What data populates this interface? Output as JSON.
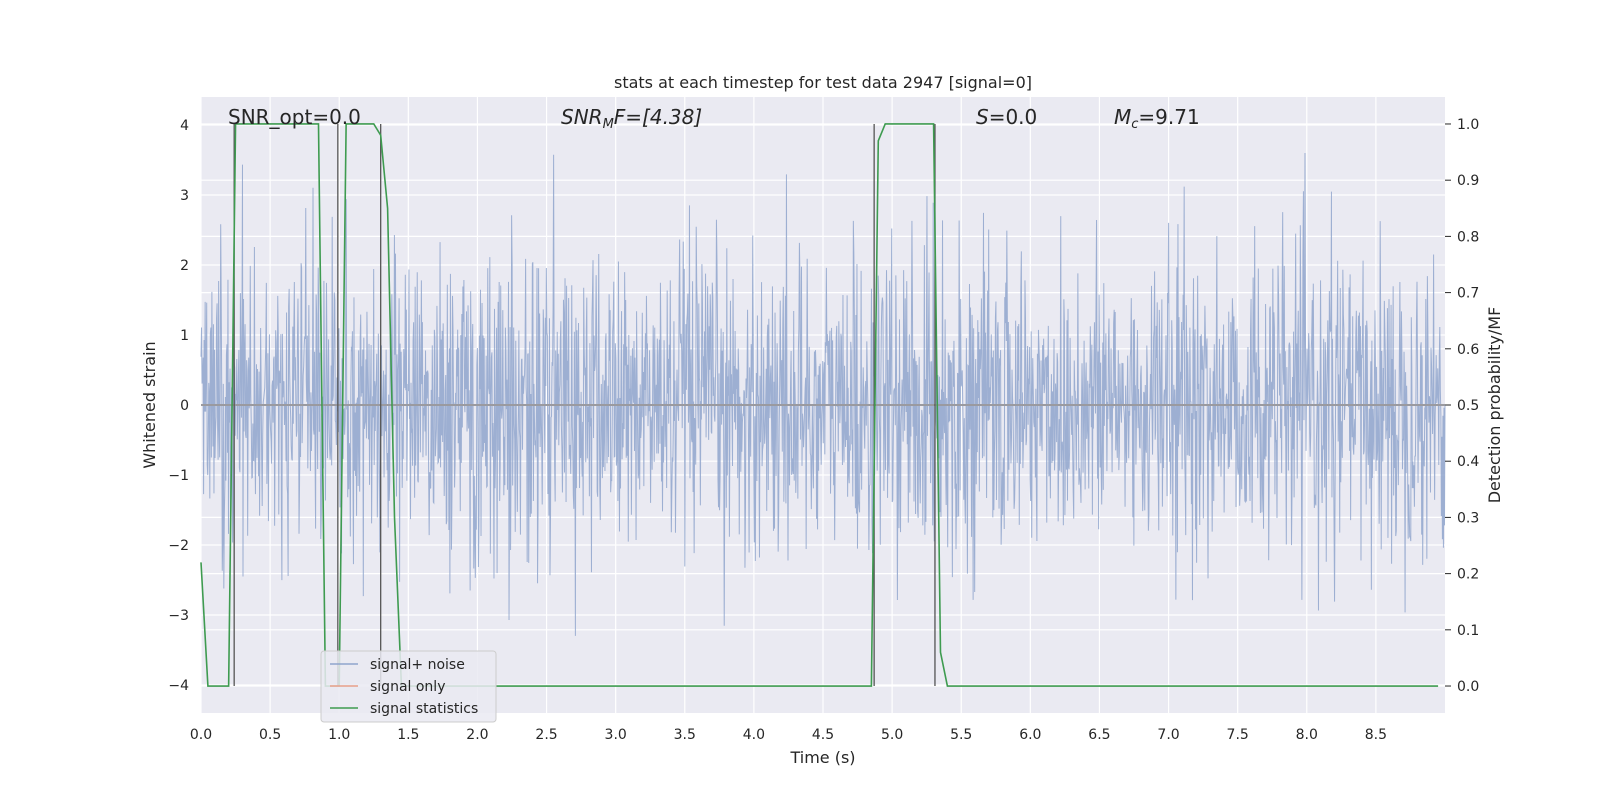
{
  "chart_data": {
    "type": "line",
    "title": "stats at each timestep for test data 2947 [signal=0]",
    "xlabel": "Time (s)",
    "ylabel": "Whitened strain",
    "ylabel_right": "Detection probability/MF",
    "xlim": [
      0,
      9
    ],
    "ylim": [
      -4.4,
      4.4
    ],
    "ylim_right": [
      -0.048,
      1.048
    ],
    "x_ticks": [
      "0.0",
      "0.5",
      "1.0",
      "1.5",
      "2.0",
      "2.5",
      "3.0",
      "3.5",
      "4.0",
      "4.5",
      "5.0",
      "5.5",
      "6.0",
      "6.5",
      "7.0",
      "7.5",
      "8.0",
      "8.5"
    ],
    "y_ticks": [
      "−4",
      "−3",
      "−2",
      "−1",
      "0",
      "1",
      "2",
      "3",
      "4"
    ],
    "y_ticks_right": [
      "0.0",
      "0.1",
      "0.2",
      "0.3",
      "0.4",
      "0.5",
      "0.6",
      "0.7",
      "0.8",
      "0.9",
      "1.0"
    ],
    "grid": true,
    "legend_position": "lower-left",
    "annotations": {
      "snr_opt": "SNR_opt=0.0",
      "snr_mf_base": "SNR",
      "snr_mf_sub": "M",
      "snr_mf_rest": "F=[4.38]",
      "s_sym": "S",
      "s_rest": "=0.0",
      "mc_sym": "M",
      "mc_sub": "c",
      "mc_rest": "=9.71"
    },
    "series": [
      {
        "name": "signal+ noise",
        "color": "#8fa4cc",
        "description_of_values": "whitened strain noise, roughly Gaussian, range about -3.9 to 3.6"
      },
      {
        "name": "signal only",
        "color": "#e8a08a",
        "values_const": 0.0
      },
      {
        "name": "signal statistics",
        "color": "#3e9b50",
        "axis": "right",
        "x": [
          0.0,
          0.05,
          0.1,
          0.15,
          0.2,
          0.25,
          0.3,
          0.35,
          0.85,
          0.9,
          0.95,
          1.0,
          1.05,
          1.1,
          1.25,
          1.3,
          1.35,
          1.4,
          1.45,
          1.5,
          2.0,
          3.0,
          4.0,
          4.85,
          4.9,
          4.95,
          5.0,
          5.3,
          5.35,
          5.4,
          5.5,
          6.0,
          7.0,
          8.0,
          8.95
        ],
        "values": [
          0.22,
          0.0,
          0.0,
          0.0,
          0.0,
          1.0,
          1.0,
          1.0,
          1.0,
          0.0,
          0.0,
          0.0,
          1.0,
          1.0,
          1.0,
          0.98,
          0.85,
          0.3,
          0.0,
          0.0,
          0.0,
          0.0,
          0.0,
          0.0,
          0.97,
          1.0,
          1.0,
          1.0,
          0.06,
          0.0,
          0.0,
          0.0,
          0.0,
          0.0,
          0.0
        ]
      }
    ],
    "vertical_markers": [
      0.24,
      0.99,
      1.3,
      4.87,
      5.31
    ]
  },
  "legend": [
    {
      "label": "signal+ noise",
      "color": "#8fa4cc"
    },
    {
      "label": "signal only",
      "color": "#e8a08a"
    },
    {
      "label": "signal statistics",
      "color": "#3e9b50"
    }
  ]
}
